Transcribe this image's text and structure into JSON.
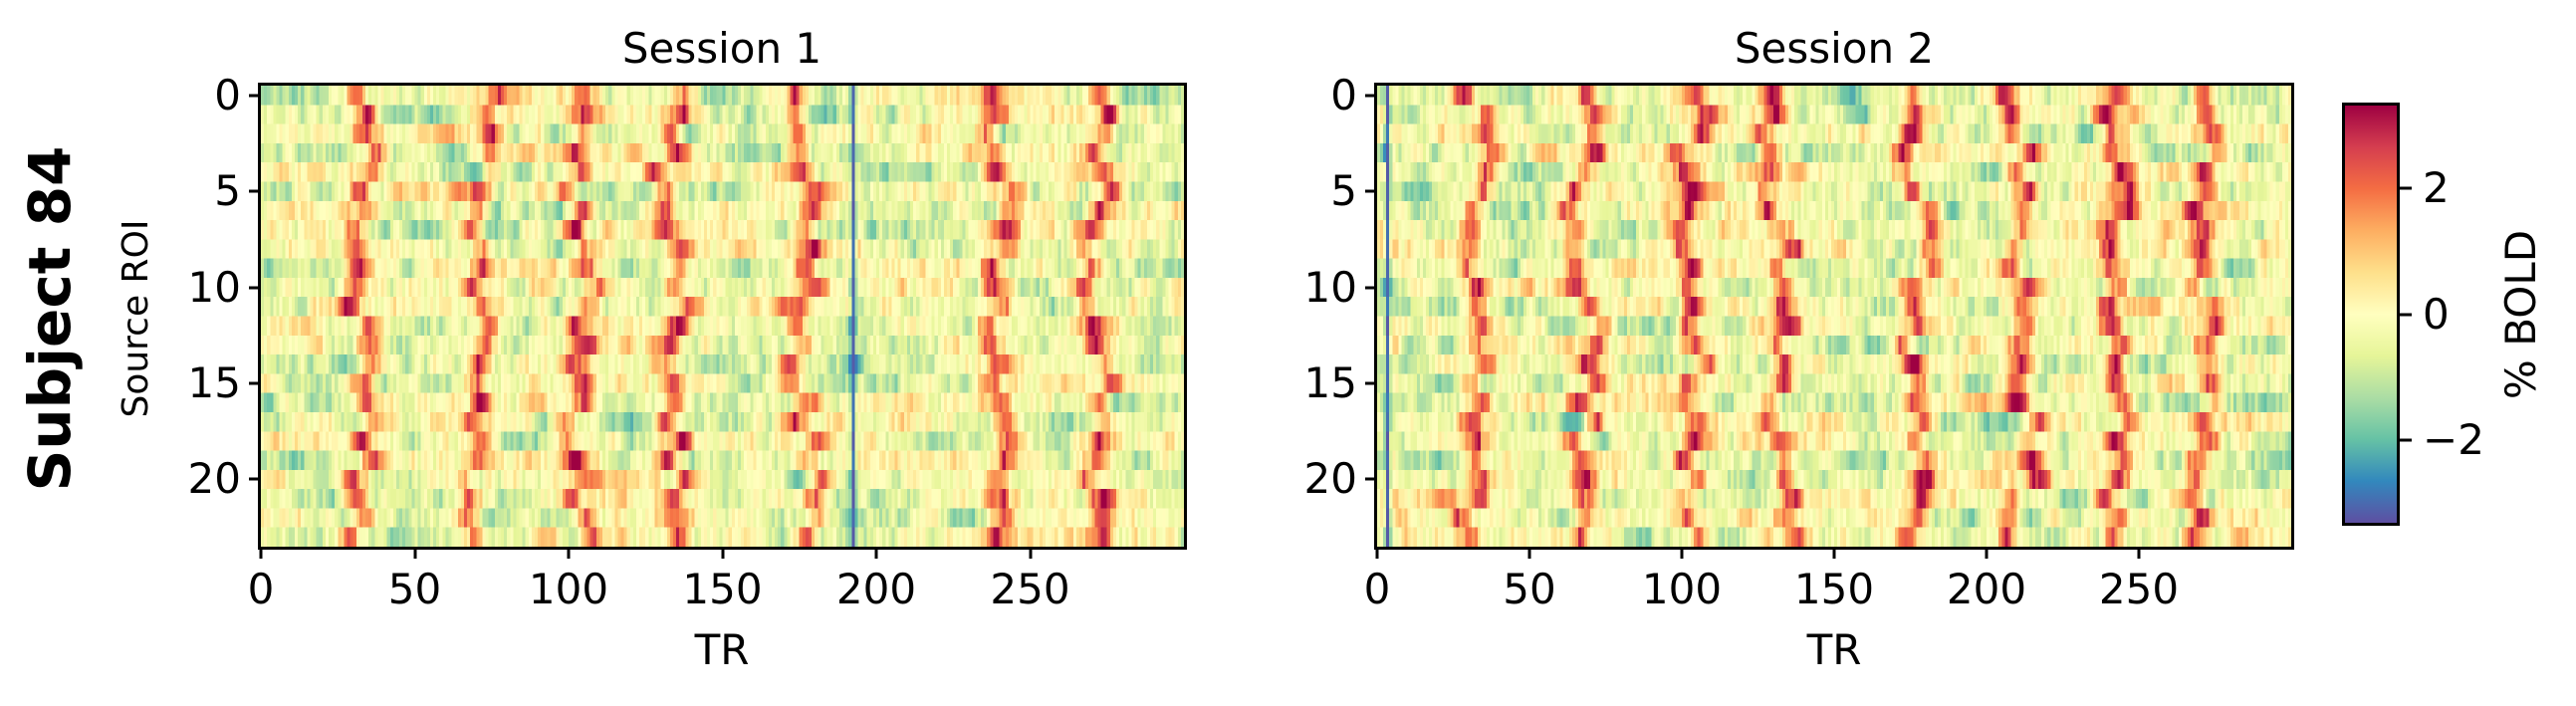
{
  "figure": {
    "row_label": "Subject 84",
    "y_axis_label": "Source ROI",
    "colorbar_label": "% BOLD"
  },
  "chart_data": [
    {
      "type": "heatmap",
      "title": "Session 1",
      "xlabel": "TR",
      "ylabel": "Source ROI",
      "x_range": [
        0,
        300
      ],
      "y_range": [
        0,
        23
      ],
      "n_rows": 24,
      "n_cols": 300,
      "xticks": [
        "0",
        "50",
        "100",
        "150",
        "200",
        "250"
      ],
      "yticks": [
        "0",
        "5",
        "10",
        "15",
        "20"
      ],
      "colormap": "Spectral_r",
      "value_range": [
        -3.3,
        3.3
      ],
      "positive_band_centers_tr": [
        33,
        71,
        104,
        134,
        177,
        239,
        272
      ],
      "negative_line_tr": 192,
      "description": "Vertical bands of elevated % BOLD (red/orange) recurring across all 24 ROIs with background fluctuations in green/blue; thin dark-blue vertical artifact at TR ~192"
    },
    {
      "type": "heatmap",
      "title": "Session 2",
      "xlabel": "TR",
      "ylabel": "",
      "x_range": [
        0,
        300
      ],
      "y_range": [
        0,
        23
      ],
      "n_rows": 24,
      "n_cols": 300,
      "xticks": [
        "0",
        "50",
        "100",
        "150",
        "200",
        "250"
      ],
      "yticks": [
        "0",
        "5",
        "10",
        "15",
        "20"
      ],
      "colormap": "Spectral_r",
      "value_range": [
        -3.3,
        3.3
      ],
      "positive_band_centers_tr": [
        32,
        68,
        103,
        132,
        176,
        211,
        242,
        271
      ],
      "negative_line_tr": 3,
      "description": "Stronger, more consistent vertical red bands across ROIs than Session 1; blue column near TR ~3"
    }
  ],
  "colorbar": {
    "label": "% BOLD",
    "ticks": [
      "2",
      "0",
      "−2"
    ],
    "tick_values": [
      2,
      0,
      -2
    ],
    "range": [
      -3.3,
      3.3
    ]
  }
}
